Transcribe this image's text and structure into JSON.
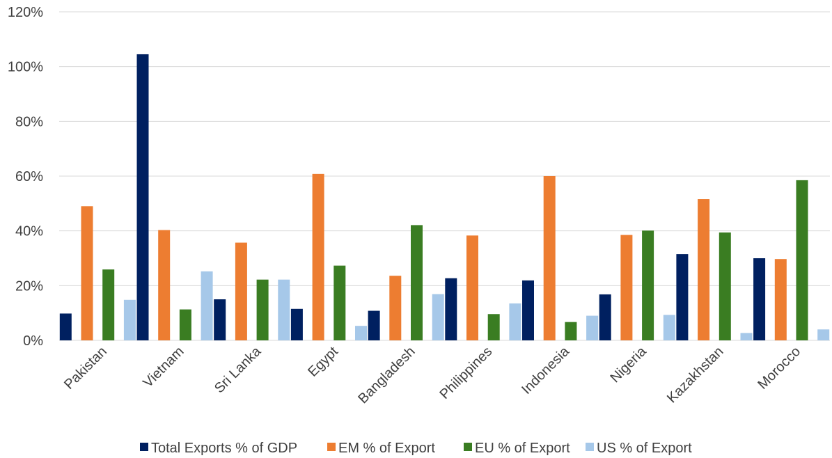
{
  "chart_data": {
    "type": "bar",
    "title": "",
    "xlabel": "",
    "ylabel": "",
    "ylim": [
      0,
      120
    ],
    "yticks": [
      "0%",
      "20%",
      "40%",
      "60%",
      "80%",
      "100%",
      "120%"
    ],
    "grid": true,
    "legend_position": "bottom",
    "categories": [
      "Pakistan",
      "Vietnam",
      "Sri Lanka",
      "Egypt",
      "Bangladesh",
      "Philippines",
      "Indonesia",
      "Nigeria",
      "Kazakhstan",
      "Morocco"
    ],
    "series": [
      {
        "name": "Total Exports % of GDP",
        "color": "#002060",
        "values": [
          9.8,
          104.5,
          15,
          11.5,
          10.8,
          22.7,
          21.9,
          16.8,
          31.5,
          30
        ]
      },
      {
        "name": "EM % of Export",
        "color": "#ed7d31",
        "values": [
          49,
          40.3,
          35.7,
          60.8,
          23.6,
          38.3,
          60,
          38.5,
          51.6,
          29.7
        ]
      },
      {
        "name": "EU % of Export",
        "color": "#3a7d22",
        "values": [
          25.9,
          11.3,
          22.2,
          27.3,
          42.1,
          9.6,
          6.7,
          40.1,
          39.4,
          58.5
        ]
      },
      {
        "name": "US % of Export",
        "color": "#a6c8e9",
        "values": [
          14.8,
          25.2,
          22.2,
          5.3,
          16.9,
          13.5,
          9,
          9.3,
          2.7,
          4
        ]
      }
    ]
  }
}
